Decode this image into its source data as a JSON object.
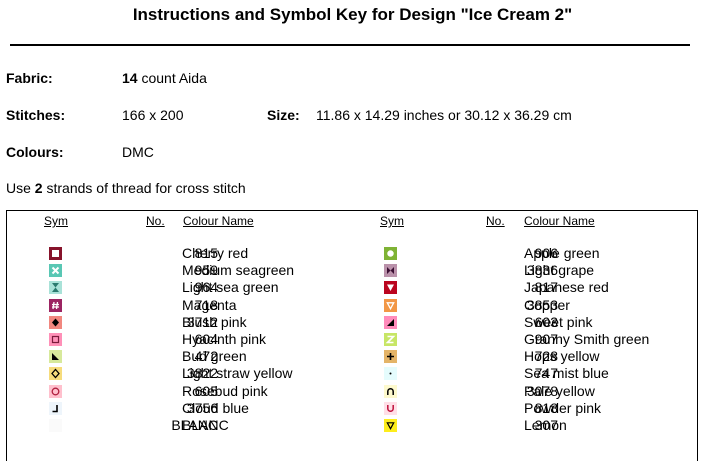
{
  "title": "Instructions and Symbol Key for Design \"Ice Cream 2\"",
  "fabric": {
    "label": "Fabric:",
    "count": "14",
    "rest": " count Aida"
  },
  "stitches": {
    "label": "Stitches:",
    "value": "166 x 200"
  },
  "size": {
    "label": "Size:",
    "value": "11.86 x 14.29 inches or 30.12 x 36.29 cm"
  },
  "colours": {
    "label": "Colours:",
    "value": "DMC"
  },
  "note": {
    "pre": "Use ",
    "strands": "2",
    "post": " strands of thread for cross stitch"
  },
  "table": {
    "headers": {
      "sym": "Sym",
      "no": "No.",
      "name": "Colour Name"
    },
    "left": [
      {
        "no": "815",
        "name": "Cherry red",
        "color": "#87132b",
        "icon": "square-outline"
      },
      {
        "no": "959",
        "name": "Medium seagreen",
        "color": "#59c7b4",
        "icon": "x"
      },
      {
        "no": "964",
        "name": "Light sea green",
        "color": "#a9e2d8",
        "icon": "hourglass"
      },
      {
        "no": "718",
        "name": "Magenta",
        "color": "#9c2462",
        "icon": "hash"
      },
      {
        "no": "3712",
        "name": "Blush pink",
        "color": "#f1877f",
        "icon": "diamond"
      },
      {
        "no": "604",
        "name": "Hyacinth pink",
        "color": "#ff90b8",
        "icon": "square-inner"
      },
      {
        "no": "472",
        "name": "Bud green",
        "color": "#d7e99b",
        "icon": "triangle"
      },
      {
        "no": "3822",
        "name": "Light straw yellow",
        "color": "#f6dc7c",
        "icon": "diamond-outline"
      },
      {
        "no": "605",
        "name": "Rosebud pink",
        "color": "#ffc0cd",
        "icon": "circle-outline"
      },
      {
        "no": "3756",
        "name": "Cloud blue",
        "color": "#eef5fb",
        "icon": "corner"
      },
      {
        "no": "BLANC",
        "name": "BLANC",
        "color": "#fafafa",
        "icon": "blank"
      }
    ],
    "right": [
      {
        "no": "906",
        "name": "Apple green",
        "color": "#7fb335",
        "icon": "circle"
      },
      {
        "no": "3836",
        "name": "Light grape",
        "color": "#ba91aa",
        "icon": "bowtie"
      },
      {
        "no": "817",
        "name": "Japanese red",
        "color": "#bb051f",
        "icon": "triangle-down"
      },
      {
        "no": "3853",
        "name": "Copper",
        "color": "#f29746",
        "icon": "triangle-down-outline"
      },
      {
        "no": "603",
        "name": "Sweet pink",
        "color": "#ff8bbb",
        "icon": "triangle-corner"
      },
      {
        "no": "907",
        "name": "Granny Smith green",
        "color": "#c7e666",
        "icon": "z"
      },
      {
        "no": "728",
        "name": "Hops yellow",
        "color": "#e4b468",
        "icon": "plus"
      },
      {
        "no": "747",
        "name": "Sea mist blue",
        "color": "#e5fcfd",
        "icon": "dot"
      },
      {
        "no": "3078",
        "name": "Pale yellow",
        "color": "#fdf9cd",
        "icon": "arch"
      },
      {
        "no": "818",
        "name": "Powder pink",
        "color": "#ffdfe7",
        "icon": "cup"
      },
      {
        "no": "307",
        "name": "Lemon",
        "color": "#fded1c",
        "icon": "v-triangle"
      }
    ]
  }
}
